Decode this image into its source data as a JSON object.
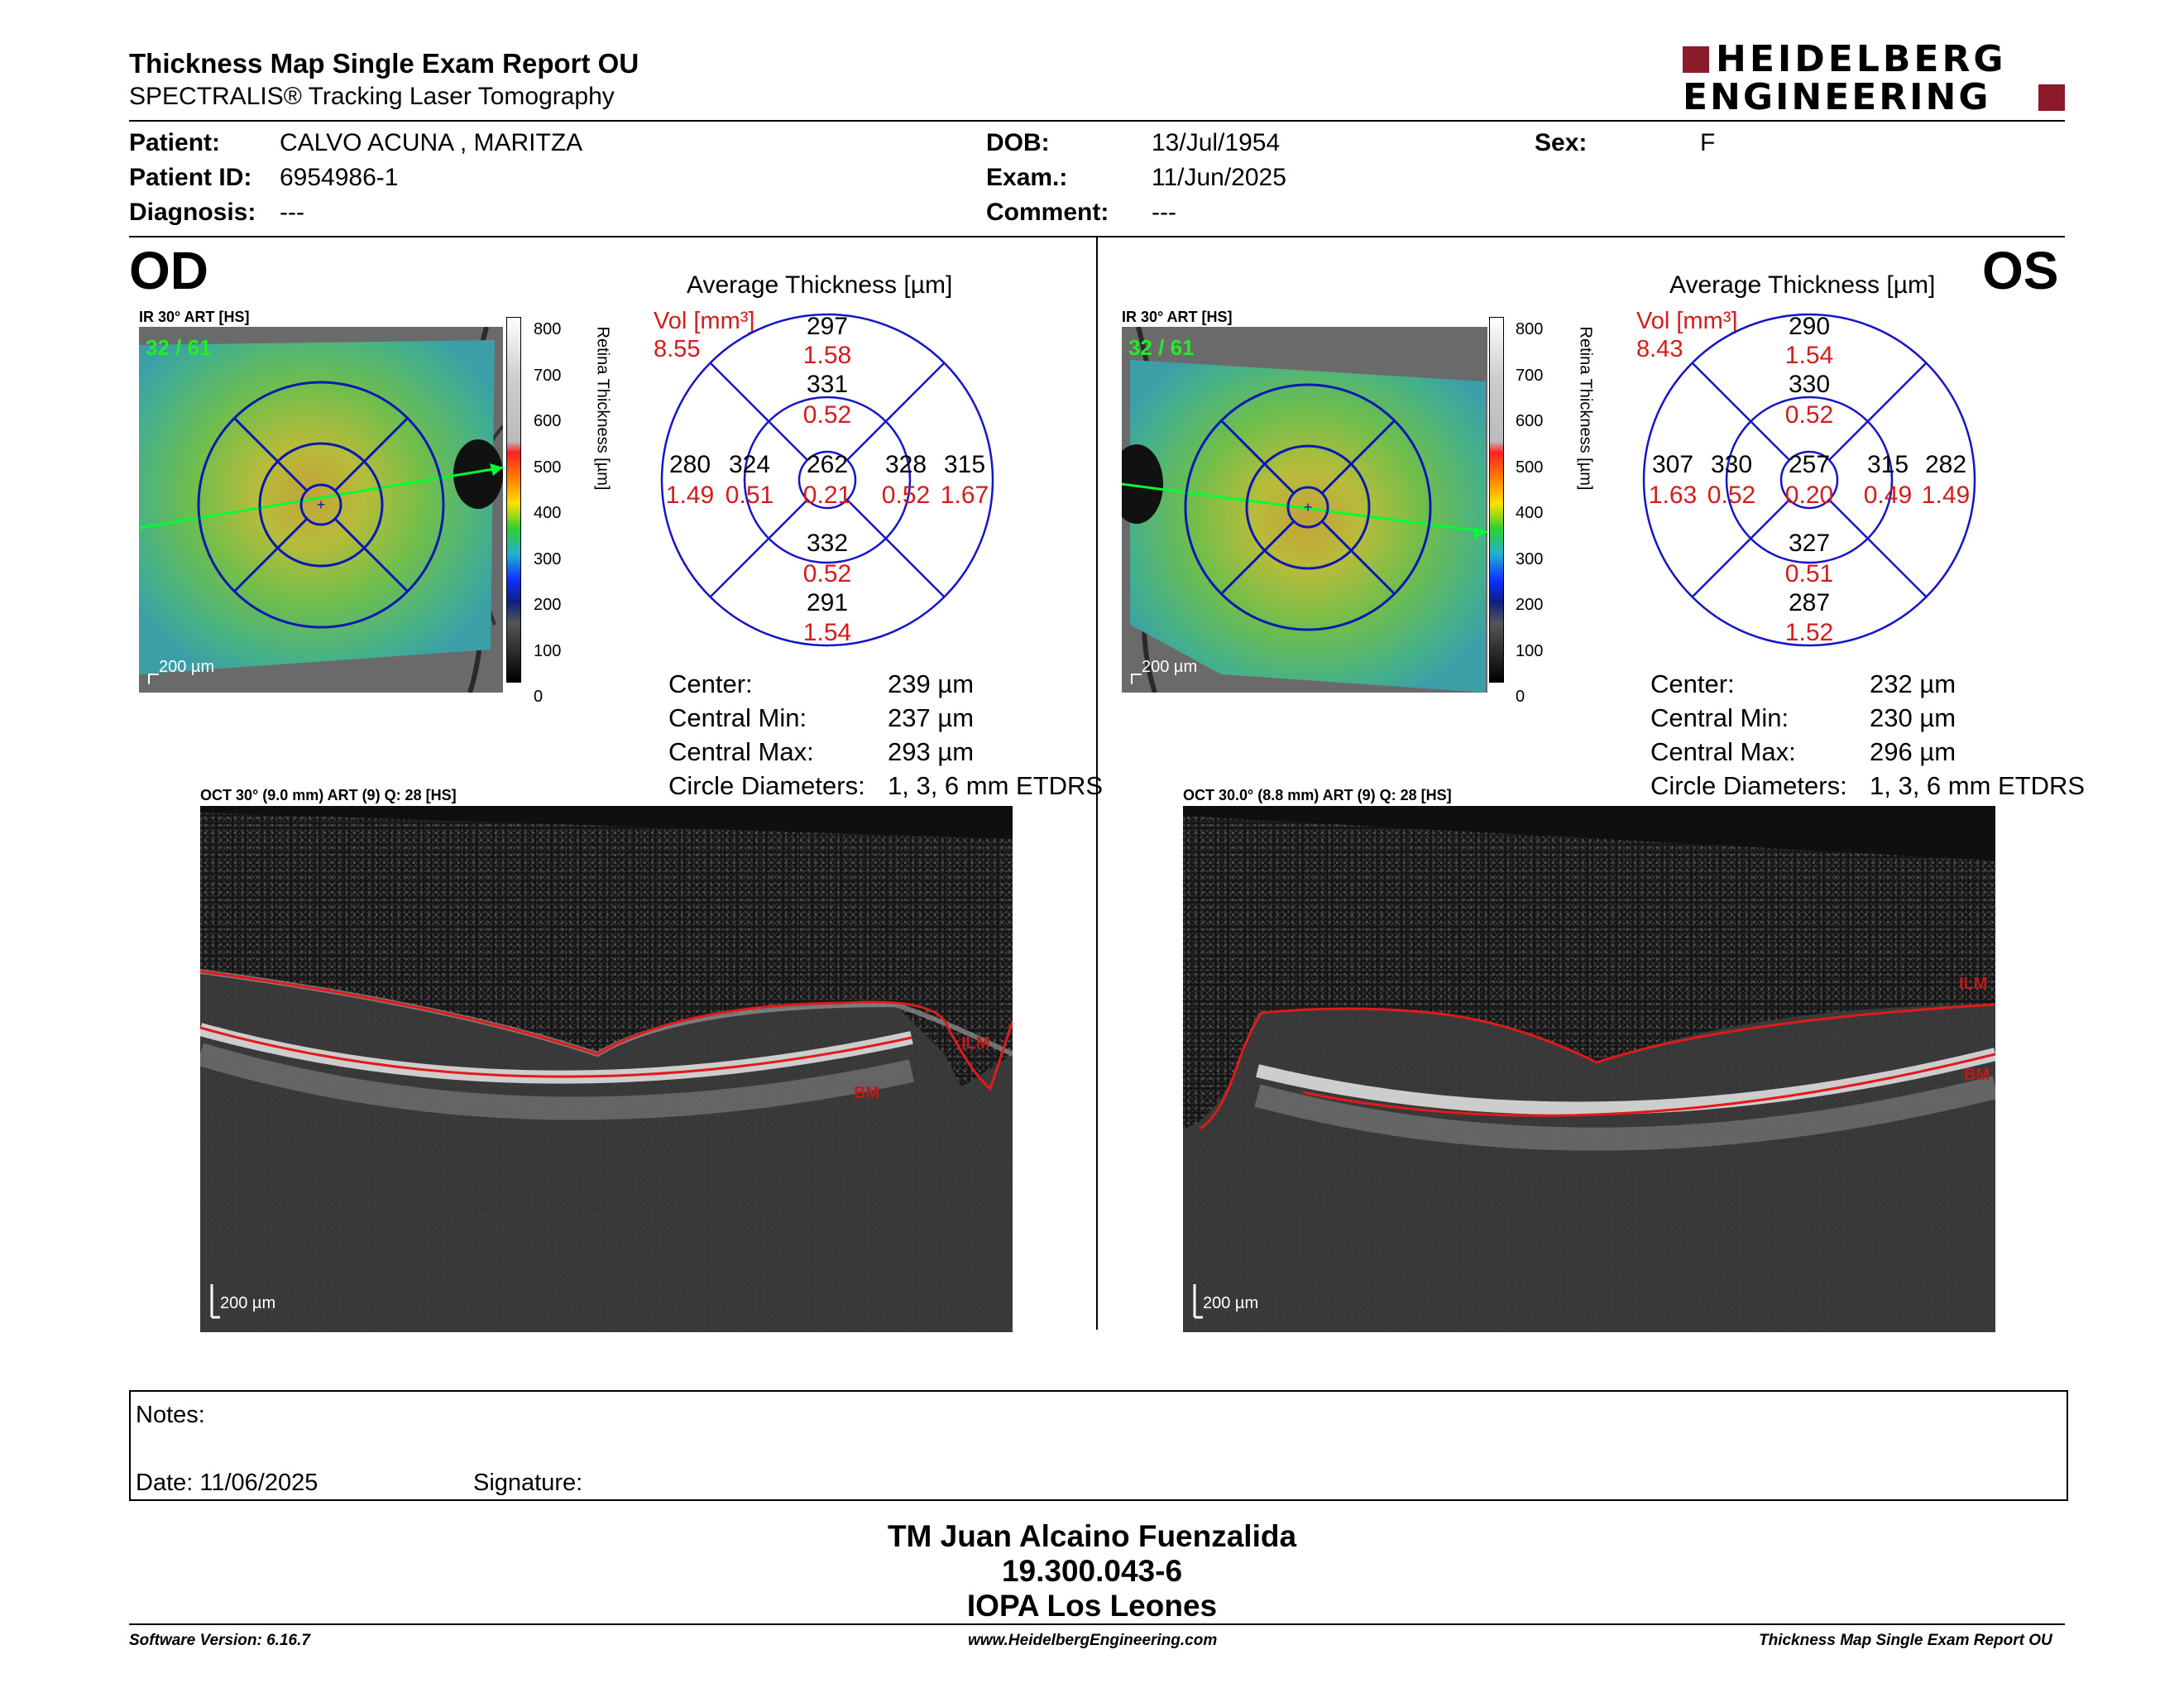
{
  "header": {
    "title": "Thickness Map Single Exam Report OU",
    "subtitle": "SPECTRALIS® Tracking Laser Tomography",
    "brand_line1": "HEIDELBERG",
    "brand_line2": "ENGINEERING",
    "brand_color": "#8b1a2b"
  },
  "patient": {
    "patient_label": "Patient:",
    "patient_value": "CALVO ACUNA , MARITZA",
    "id_label": "Patient ID:",
    "id_value": "6954986-1",
    "diagnosis_label": "Diagnosis:",
    "diagnosis_value": "---",
    "dob_label": "DOB:",
    "dob_value": "13/Jul/1954",
    "exam_label": "Exam.:",
    "exam_value": "11/Jun/2025",
    "comment_label": "Comment:",
    "comment_value": "---",
    "sex_label": "Sex:",
    "sex_value": "F"
  },
  "od": {
    "eye": "OD",
    "ir_label": "IR 30° ART [HS]",
    "frame_count": "32 / 61",
    "scale": "200 µm",
    "avg_title": "Average Thickness [µm]",
    "vol_label": "Vol [mm³]",
    "vol_value": "8.55",
    "rings": {
      "sup_outer": "297",
      "sup_outer_v": "1.58",
      "sup_inner": "331",
      "sup_inner_v": "0.52",
      "temp_outer": "280",
      "temp_outer_v": "1.49",
      "temp_inner": "324",
      "temp_inner_v": "0.51",
      "center": "262",
      "center_v": "0.21",
      "nas_inner": "328",
      "nas_inner_v": "0.52",
      "nas_outer": "315",
      "nas_outer_v": "1.67",
      "inf_inner": "332",
      "inf_inner_v": "0.52",
      "inf_outer": "291",
      "inf_outer_v": "1.54"
    },
    "stats": {
      "center_label": "Center:",
      "center_value": "239 µm",
      "min_label": "Central Min:",
      "min_value": "237 µm",
      "max_label": "Central Max:",
      "max_value": "293 µm",
      "diam_label": "Circle Diameters:",
      "diam_value": "1, 3, 6 mm ETDRS"
    },
    "oct_label": "OCT 30° (9.0 mm) ART (9) Q: 28 [HS]",
    "ilm": "ILM",
    "bm": "BM"
  },
  "os": {
    "eye": "OS",
    "ir_label": "IR 30° ART [HS]",
    "frame_count": "32 / 61",
    "scale": "200 µm",
    "avg_title": "Average Thickness [µm]",
    "vol_label": "Vol [mm³]",
    "vol_value": "8.43",
    "rings": {
      "sup_outer": "290",
      "sup_outer_v": "1.54",
      "sup_inner": "330",
      "sup_inner_v": "0.52",
      "temp_outer": "307",
      "temp_outer_v": "1.63",
      "temp_inner": "330",
      "temp_inner_v": "0.52",
      "center": "257",
      "center_v": "0.20",
      "nas_inner": "315",
      "nas_inner_v": "0.49",
      "nas_outer": "282",
      "nas_outer_v": "1.49",
      "inf_inner": "327",
      "inf_inner_v": "0.51",
      "inf_outer": "287",
      "inf_outer_v": "1.52"
    },
    "stats": {
      "center_label": "Center:",
      "center_value": "232 µm",
      "min_label": "Central Min:",
      "min_value": "230 µm",
      "max_label": "Central Max:",
      "max_value": "296 µm",
      "diam_label": "Circle Diameters:",
      "diam_value": "1, 3, 6 mm ETDRS"
    },
    "oct_label": "OCT 30.0° (8.8 mm) ART (9) Q: 28 [HS]",
    "ilm": "ILM",
    "bm": "BM"
  },
  "colorbar": {
    "ticks": [
      "800",
      "700",
      "600",
      "500",
      "400",
      "300",
      "200",
      "100",
      "0"
    ],
    "axis_label": "Retina Thickness [µm]"
  },
  "notes": {
    "notes_label": "Notes:",
    "date_label": "Date: 11/06/2025",
    "signature_label": "Signature:"
  },
  "signer": {
    "name": "TM Juan Alcaino Fuenzalida",
    "id": "19.300.043-6",
    "org": "IOPA Los Leones"
  },
  "footer": {
    "version": "Software Version: 6.16.7",
    "website": "www.HeidelbergEngineering.com",
    "report": "Thickness Map Single Exam Report OU"
  }
}
